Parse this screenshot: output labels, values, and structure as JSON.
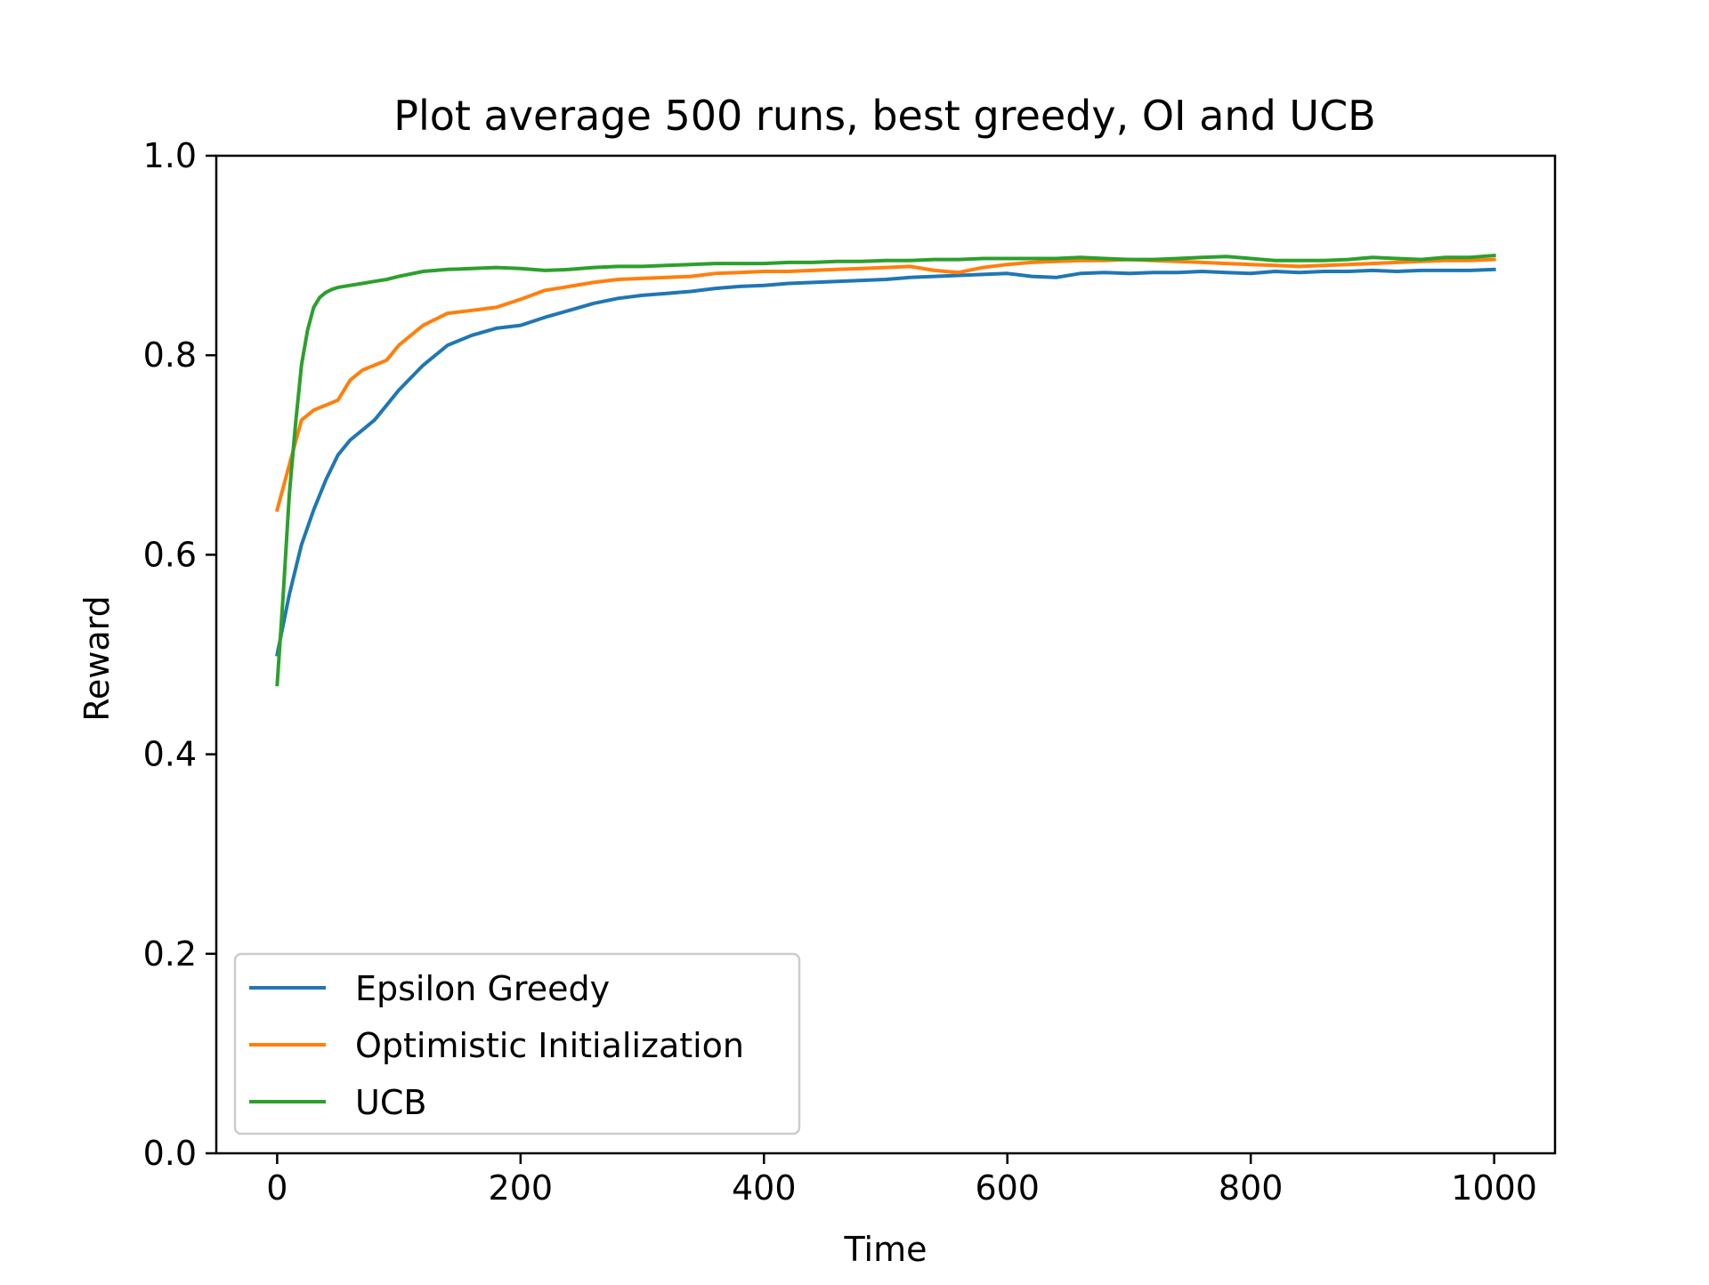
{
  "chart_data": {
    "type": "line",
    "title": "Plot average 500 runs, best greedy, OI and UCB",
    "xlabel": "Time",
    "ylabel": "Reward",
    "xlim": [
      -50,
      1050
    ],
    "ylim": [
      0.0,
      1.0
    ],
    "xticks": [
      0,
      200,
      400,
      600,
      800,
      1000
    ],
    "xtick_labels": [
      "0",
      "200",
      "400",
      "600",
      "800",
      "1000"
    ],
    "yticks": [
      0.0,
      0.2,
      0.4,
      0.6,
      0.8,
      1.0
    ],
    "ytick_labels": [
      "0.0",
      "0.2",
      "0.4",
      "0.6",
      "0.8",
      "1.0"
    ],
    "grid": false,
    "legend_position": "lower-left",
    "series": [
      {
        "name": "Epsilon Greedy",
        "color": "#1f77b4",
        "x": [
          0,
          10,
          20,
          30,
          40,
          50,
          60,
          70,
          80,
          90,
          100,
          120,
          140,
          160,
          180,
          200,
          220,
          240,
          260,
          280,
          300,
          320,
          340,
          360,
          380,
          400,
          420,
          440,
          460,
          480,
          500,
          520,
          540,
          560,
          580,
          600,
          620,
          640,
          660,
          680,
          700,
          720,
          740,
          760,
          780,
          800,
          820,
          840,
          860,
          880,
          900,
          920,
          940,
          960,
          980,
          1000
        ],
        "y": [
          0.5,
          0.56,
          0.61,
          0.645,
          0.675,
          0.7,
          0.715,
          0.725,
          0.735,
          0.75,
          0.765,
          0.79,
          0.81,
          0.82,
          0.827,
          0.83,
          0.838,
          0.845,
          0.852,
          0.857,
          0.86,
          0.862,
          0.864,
          0.867,
          0.869,
          0.87,
          0.872,
          0.873,
          0.874,
          0.875,
          0.876,
          0.878,
          0.879,
          0.88,
          0.881,
          0.882,
          0.879,
          0.878,
          0.882,
          0.883,
          0.882,
          0.883,
          0.883,
          0.884,
          0.883,
          0.882,
          0.884,
          0.883,
          0.884,
          0.884,
          0.885,
          0.884,
          0.885,
          0.885,
          0.885,
          0.886
        ]
      },
      {
        "name": "Optimistic Initialization",
        "color": "#ff7f0e",
        "x": [
          0,
          10,
          20,
          30,
          40,
          50,
          60,
          70,
          80,
          90,
          100,
          120,
          140,
          160,
          180,
          200,
          220,
          240,
          260,
          280,
          300,
          320,
          340,
          360,
          380,
          400,
          420,
          440,
          460,
          480,
          500,
          520,
          540,
          560,
          580,
          600,
          620,
          640,
          660,
          680,
          700,
          720,
          740,
          760,
          780,
          800,
          820,
          840,
          860,
          880,
          900,
          920,
          940,
          960,
          980,
          1000
        ],
        "y": [
          0.645,
          0.69,
          0.735,
          0.745,
          0.75,
          0.755,
          0.775,
          0.785,
          0.79,
          0.795,
          0.81,
          0.83,
          0.842,
          0.845,
          0.848,
          0.856,
          0.865,
          0.869,
          0.873,
          0.876,
          0.877,
          0.878,
          0.879,
          0.882,
          0.883,
          0.884,
          0.884,
          0.885,
          0.886,
          0.887,
          0.888,
          0.889,
          0.885,
          0.883,
          0.888,
          0.891,
          0.893,
          0.894,
          0.895,
          0.895,
          0.896,
          0.895,
          0.894,
          0.893,
          0.892,
          0.891,
          0.89,
          0.889,
          0.89,
          0.891,
          0.892,
          0.893,
          0.894,
          0.895,
          0.895,
          0.896
        ]
      },
      {
        "name": "UCB",
        "color": "#2ca02c",
        "x": [
          0,
          5,
          10,
          15,
          20,
          25,
          30,
          35,
          40,
          45,
          50,
          60,
          70,
          80,
          90,
          100,
          120,
          140,
          160,
          180,
          200,
          220,
          240,
          260,
          280,
          300,
          320,
          340,
          360,
          380,
          400,
          420,
          440,
          460,
          480,
          500,
          520,
          540,
          560,
          580,
          600,
          620,
          640,
          660,
          680,
          700,
          720,
          740,
          760,
          780,
          800,
          820,
          840,
          860,
          880,
          900,
          920,
          940,
          960,
          980,
          1000
        ],
        "y": [
          0.47,
          0.56,
          0.66,
          0.73,
          0.79,
          0.825,
          0.848,
          0.858,
          0.863,
          0.866,
          0.868,
          0.87,
          0.872,
          0.874,
          0.876,
          0.879,
          0.884,
          0.886,
          0.887,
          0.888,
          0.887,
          0.885,
          0.886,
          0.888,
          0.889,
          0.889,
          0.89,
          0.891,
          0.892,
          0.892,
          0.892,
          0.893,
          0.893,
          0.894,
          0.894,
          0.895,
          0.895,
          0.896,
          0.896,
          0.897,
          0.897,
          0.897,
          0.897,
          0.898,
          0.897,
          0.896,
          0.896,
          0.897,
          0.898,
          0.899,
          0.897,
          0.895,
          0.895,
          0.895,
          0.896,
          0.898,
          0.897,
          0.896,
          0.898,
          0.898,
          0.9
        ]
      }
    ]
  }
}
